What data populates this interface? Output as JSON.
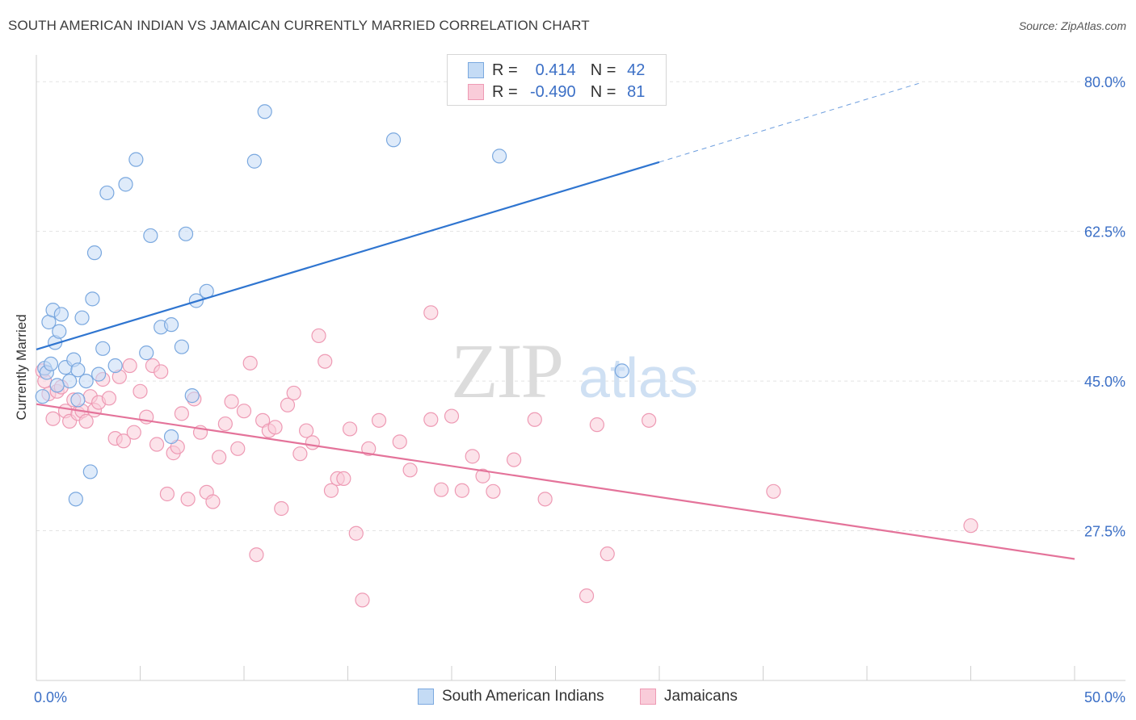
{
  "header": {
    "title": "SOUTH AMERICAN INDIAN VS JAMAICAN CURRENTLY MARRIED CORRELATION CHART",
    "source": "Source: ZipAtlas.com"
  },
  "stats_box": {
    "rows": [
      {
        "r_label": "R =",
        "r_value": "0.414",
        "n_label": "N =",
        "n_value": "42",
        "color": "#7fb0e8"
      },
      {
        "r_label": "R =",
        "r_value": "-0.490",
        "n_label": "N =",
        "n_value": "81",
        "color": "#f2a0b8"
      }
    ]
  },
  "legend": {
    "items": [
      {
        "label": "South American Indians",
        "color": "#7fb0e8"
      },
      {
        "label": "Jamaicans",
        "color": "#f2a0b8"
      }
    ]
  },
  "watermark": {
    "zip": "ZIP",
    "atlas": "atlas"
  },
  "colors": {
    "blue_fill": "#c4dbf5",
    "blue_stroke": "#7aa8df",
    "blue_line": "#2f75d0",
    "pink_fill": "#f9ccd9",
    "pink_stroke": "#ee9ab4",
    "pink_line": "#e4739a",
    "axis_label": "#3b6fc6",
    "grid": "#e3e3e3"
  },
  "chart_data": {
    "type": "scatter",
    "title": "SOUTH AMERICAN INDIAN VS JAMAICAN CURRENTLY MARRIED CORRELATION CHART",
    "xlabel": "",
    "ylabel": "Currently Married",
    "xlim": [
      0,
      50
    ],
    "ylim": [
      10.0,
      82.0
    ],
    "x_tick_labels": [
      "0.0%",
      "50.0%"
    ],
    "y_ticks": [
      27.5,
      45.0,
      62.5,
      80.0
    ],
    "y_tick_labels": [
      "27.5%",
      "45.0%",
      "62.5%",
      "80.0%"
    ],
    "grid": true,
    "legend_position": "bottom-center",
    "series": [
      {
        "name": "South American Indians",
        "trend": {
          "x0": 0,
          "y0": 48.7,
          "x1": 30,
          "y1": 70.6,
          "dash_to_x": 42.5,
          "dash_to_y": 79.8
        },
        "points": [
          [
            0.3,
            43.2
          ],
          [
            0.4,
            46.5
          ],
          [
            0.5,
            46.0
          ],
          [
            0.6,
            51.9
          ],
          [
            0.7,
            47.0
          ],
          [
            0.8,
            53.3
          ],
          [
            0.9,
            49.5
          ],
          [
            1.1,
            50.8
          ],
          [
            1.2,
            52.8
          ],
          [
            1.4,
            46.6
          ],
          [
            1.6,
            45.0
          ],
          [
            1.8,
            47.5
          ],
          [
            2.0,
            46.3
          ],
          [
            2.2,
            52.4
          ],
          [
            2.4,
            45.0
          ],
          [
            2.7,
            54.6
          ],
          [
            2.8,
            60.0
          ],
          [
            3.0,
            45.8
          ],
          [
            3.2,
            48.8
          ],
          [
            3.4,
            67.0
          ],
          [
            3.8,
            46.8
          ],
          [
            4.3,
            68.0
          ],
          [
            4.8,
            70.9
          ],
          [
            5.3,
            48.3
          ],
          [
            5.5,
            62.0
          ],
          [
            6.0,
            51.3
          ],
          [
            6.5,
            38.5
          ],
          [
            6.5,
            51.6
          ],
          [
            7.0,
            49.0
          ],
          [
            7.2,
            62.2
          ],
          [
            7.5,
            43.3
          ],
          [
            7.7,
            54.4
          ],
          [
            8.2,
            55.5
          ],
          [
            10.5,
            70.7
          ],
          [
            11.0,
            76.5
          ],
          [
            17.2,
            73.2
          ],
          [
            22.3,
            71.3
          ],
          [
            28.2,
            46.2
          ],
          [
            2.6,
            34.4
          ],
          [
            1.9,
            31.2
          ],
          [
            2.0,
            42.8
          ],
          [
            1.0,
            44.5
          ]
        ]
      },
      {
        "name": "Jamaicans",
        "trend": {
          "x0": 0,
          "y0": 42.3,
          "x1": 50,
          "y1": 24.2
        },
        "points": [
          [
            0.3,
            46.2
          ],
          [
            0.4,
            45.0
          ],
          [
            0.6,
            43.5
          ],
          [
            0.8,
            40.6
          ],
          [
            1.0,
            43.8
          ],
          [
            1.2,
            44.3
          ],
          [
            1.4,
            41.5
          ],
          [
            1.6,
            40.3
          ],
          [
            1.8,
            42.8
          ],
          [
            2.0,
            41.2
          ],
          [
            2.2,
            41.5
          ],
          [
            2.4,
            40.3
          ],
          [
            2.6,
            43.2
          ],
          [
            2.8,
            41.6
          ],
          [
            3.0,
            42.5
          ],
          [
            3.2,
            45.2
          ],
          [
            3.5,
            43.0
          ],
          [
            3.8,
            38.3
          ],
          [
            4.0,
            45.5
          ],
          [
            4.2,
            38.0
          ],
          [
            4.5,
            46.8
          ],
          [
            4.7,
            39.0
          ],
          [
            5.0,
            43.8
          ],
          [
            5.3,
            40.8
          ],
          [
            5.6,
            46.8
          ],
          [
            5.8,
            37.6
          ],
          [
            6.0,
            46.1
          ],
          [
            6.3,
            31.8
          ],
          [
            6.6,
            36.6
          ],
          [
            6.8,
            37.3
          ],
          [
            7.0,
            41.2
          ],
          [
            7.3,
            31.2
          ],
          [
            7.6,
            42.9
          ],
          [
            7.9,
            39.0
          ],
          [
            8.2,
            32.0
          ],
          [
            8.5,
            30.9
          ],
          [
            8.8,
            36.1
          ],
          [
            9.1,
            40.0
          ],
          [
            9.4,
            42.6
          ],
          [
            9.7,
            37.1
          ],
          [
            10.0,
            41.5
          ],
          [
            10.3,
            47.1
          ],
          [
            10.6,
            24.7
          ],
          [
            10.9,
            40.4
          ],
          [
            11.2,
            39.2
          ],
          [
            11.5,
            39.6
          ],
          [
            11.8,
            30.1
          ],
          [
            12.1,
            42.2
          ],
          [
            12.4,
            43.6
          ],
          [
            12.7,
            36.5
          ],
          [
            13.0,
            39.2
          ],
          [
            13.3,
            37.8
          ],
          [
            13.6,
            50.3
          ],
          [
            13.9,
            47.3
          ],
          [
            14.2,
            32.2
          ],
          [
            14.5,
            33.6
          ],
          [
            14.8,
            33.6
          ],
          [
            15.1,
            39.4
          ],
          [
            15.4,
            27.2
          ],
          [
            15.7,
            19.4
          ],
          [
            16.0,
            37.1
          ],
          [
            16.5,
            40.4
          ],
          [
            17.5,
            37.9
          ],
          [
            18.0,
            34.6
          ],
          [
            19.0,
            40.5
          ],
          [
            19.5,
            32.3
          ],
          [
            20.0,
            40.9
          ],
          [
            20.5,
            32.2
          ],
          [
            21.0,
            36.2
          ],
          [
            21.5,
            33.9
          ],
          [
            22.0,
            32.1
          ],
          [
            23.0,
            35.8
          ],
          [
            24.0,
            40.5
          ],
          [
            24.5,
            31.2
          ],
          [
            26.5,
            19.9
          ],
          [
            27.5,
            24.8
          ],
          [
            27.0,
            39.9
          ],
          [
            29.5,
            40.4
          ],
          [
            35.5,
            32.1
          ],
          [
            45.0,
            28.1
          ],
          [
            19.0,
            53.0
          ]
        ]
      }
    ]
  }
}
